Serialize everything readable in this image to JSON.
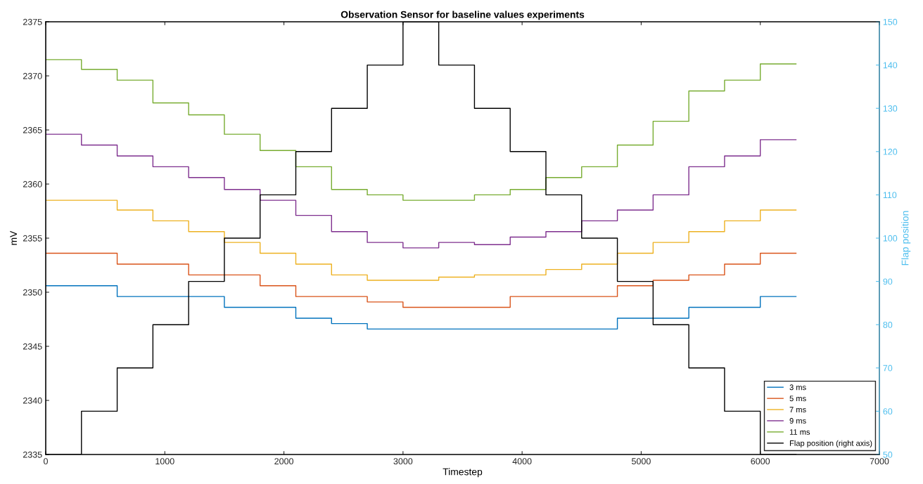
{
  "chart_data": {
    "type": "step",
    "title": "Observation Sensor for baseline values experiments",
    "xlabel": "Timestep",
    "ylabel": "mV",
    "y2label": "Flap position",
    "xlim": [
      0,
      7000
    ],
    "xticks": [
      0,
      1000,
      2000,
      3000,
      4000,
      5000,
      6000,
      7000
    ],
    "ylim": [
      2335,
      2375
    ],
    "yticks": [
      2335,
      2340,
      2345,
      2350,
      2355,
      2360,
      2365,
      2370,
      2375
    ],
    "y2lim": [
      50,
      150
    ],
    "y2ticks": [
      50,
      60,
      70,
      80,
      90,
      100,
      110,
      120,
      130,
      140,
      150
    ],
    "x": [
      0,
      300,
      600,
      900,
      1200,
      1500,
      1800,
      2100,
      2400,
      2700,
      3000,
      3300,
      3600,
      3900,
      4200,
      4500,
      4800,
      5100,
      5400,
      5700,
      6000,
      6300
    ],
    "legend": "bottom right",
    "grid": false,
    "series": [
      {
        "name": "3 ms",
        "color": "#0072bd",
        "values": [
          2350.6,
          2350.6,
          2349.6,
          2349.6,
          2349.6,
          2348.6,
          2348.6,
          2347.6,
          2347.1,
          2346.6,
          2346.6,
          2346.6,
          2346.6,
          2346.6,
          2346.6,
          2346.6,
          2347.6,
          2347.6,
          2348.6,
          2348.6,
          2349.6,
          2349.6
        ]
      },
      {
        "name": "5 ms",
        "color": "#d95319",
        "values": [
          2353.6,
          2353.6,
          2352.6,
          2352.6,
          2351.6,
          2351.6,
          2350.6,
          2349.6,
          2349.6,
          2349.1,
          2348.6,
          2348.6,
          2348.6,
          2349.6,
          2349.6,
          2349.6,
          2350.6,
          2351.1,
          2351.6,
          2352.6,
          2353.6,
          2353.6
        ]
      },
      {
        "name": "7 ms",
        "color": "#edb120",
        "values": [
          2358.5,
          2358.5,
          2357.6,
          2356.6,
          2355.6,
          2354.6,
          2353.6,
          2352.6,
          2351.6,
          2351.1,
          2351.1,
          2351.4,
          2351.6,
          2351.6,
          2352.1,
          2352.6,
          2353.6,
          2354.6,
          2355.6,
          2356.6,
          2357.6,
          2357.6
        ]
      },
      {
        "name": "9 ms",
        "color": "#7e2f8e",
        "values": [
          2364.6,
          2363.6,
          2362.6,
          2361.6,
          2360.6,
          2359.5,
          2358.5,
          2357.1,
          2355.6,
          2354.6,
          2354.1,
          2354.6,
          2354.4,
          2355.1,
          2355.6,
          2356.6,
          2357.6,
          2359.0,
          2361.6,
          2362.6,
          2364.1,
          2364.1
        ]
      },
      {
        "name": "11 ms",
        "color": "#77ac30",
        "values": [
          2371.5,
          2370.6,
          2369.6,
          2367.5,
          2366.4,
          2364.6,
          2363.1,
          2361.6,
          2359.5,
          2359.0,
          2358.5,
          2358.5,
          2359.0,
          2359.5,
          2360.6,
          2361.6,
          2363.6,
          2365.8,
          2368.6,
          2369.6,
          2371.1,
          2371.1
        ]
      },
      {
        "name": "Flap position (right axis)",
        "color": "#000000",
        "axis": "y2",
        "values": [
          50,
          60,
          70,
          80,
          90,
          100,
          110,
          120,
          130,
          140,
          150,
          140,
          130,
          120,
          110,
          100,
          90,
          80,
          70,
          60,
          50,
          50
        ]
      }
    ]
  }
}
